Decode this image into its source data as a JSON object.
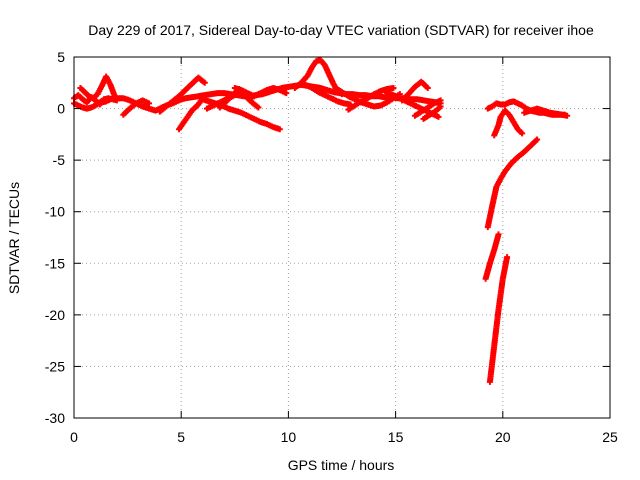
{
  "chart_data": {
    "type": "scatter",
    "title": "Day 229 of 2017, Sidereal Day-to-day VTEC variation (SDTVAR) for receiver ihoe",
    "xlabel": "GPS time / hours",
    "ylabel": "SDTVAR / TECUs",
    "xlim": [
      0,
      25
    ],
    "ylim": [
      -30,
      5
    ],
    "xticks": [
      0,
      5,
      10,
      15,
      20,
      25
    ],
    "yticks": [
      5,
      0,
      -5,
      -10,
      -15,
      -20,
      -25,
      -30
    ],
    "grid": true,
    "marker": "+",
    "color": "#ff0000",
    "series": [
      {
        "x": [
          0.0,
          0.2,
          0.4,
          0.6,
          0.8,
          1.0,
          1.2,
          1.3,
          1.5,
          1.7,
          2.0,
          2.3,
          2.6,
          2.9,
          3.2,
          3.5,
          3.8,
          4.0,
          4.3,
          4.6,
          4.9,
          5.2,
          5.5,
          5.8,
          6.1,
          6.4,
          6.7,
          7.0,
          7.3,
          7.6,
          7.9,
          8.2,
          8.5,
          8.8,
          9.1,
          9.4,
          9.7,
          10.0,
          10.3,
          10.6,
          10.9,
          11.2,
          11.5,
          11.8,
          12.1,
          12.4,
          12.7,
          13.0,
          13.3,
          13.6,
          13.9,
          14.2,
          14.5,
          14.8,
          15.1,
          15.4,
          15.7,
          16.0,
          16.3,
          16.6,
          16.9,
          17.1
        ],
        "y": [
          1.0,
          1.3,
          0.9,
          0.6,
          1.1,
          0.8,
          0.4,
          0.6,
          0.7,
          0.9,
          1.0,
          1.0,
          0.8,
          0.5,
          0.2,
          0.0,
          -0.2,
          0.0,
          0.3,
          0.5,
          0.8,
          1.0,
          1.1,
          1.2,
          1.3,
          1.4,
          1.5,
          1.5,
          1.4,
          1.3,
          1.2,
          1.2,
          1.3,
          1.4,
          1.6,
          1.8,
          2.0,
          2.1,
          2.2,
          2.3,
          2.2,
          2.1,
          2.0,
          1.8,
          1.6,
          1.5,
          1.4,
          1.4,
          1.3,
          1.3,
          1.2,
          1.2,
          1.1,
          1.1,
          1.0,
          1.0,
          0.9,
          0.9,
          0.8,
          0.7,
          0.6,
          0.5
        ]
      },
      {
        "x": [
          0.0,
          0.2,
          0.4,
          0.6,
          0.8,
          1.0,
          1.2,
          1.4,
          1.6,
          1.8,
          2.0
        ],
        "y": [
          0.5,
          0.3,
          0.1,
          0.0,
          0.1,
          0.3,
          0.6,
          0.9,
          1.0,
          0.9,
          0.8
        ]
      },
      {
        "x": [
          0.3,
          0.5,
          0.7,
          0.9,
          1.1,
          1.3,
          1.5,
          1.7,
          1.9
        ],
        "y": [
          2.0,
          1.6,
          1.2,
          1.0,
          1.4,
          2.2,
          3.1,
          2.3,
          1.2
        ]
      },
      {
        "x": [
          2.3,
          2.6,
          2.9,
          3.2,
          3.5
        ],
        "y": [
          -0.6,
          0.0,
          0.5,
          0.8,
          0.5
        ]
      },
      {
        "x": [
          4.0,
          4.3,
          4.6,
          4.9,
          5.2,
          5.5,
          5.8,
          6.1
        ],
        "y": [
          -0.3,
          0.2,
          0.7,
          1.2,
          1.8,
          2.4,
          3.0,
          2.5
        ]
      },
      {
        "x": [
          4.9,
          5.1,
          5.3,
          5.5,
          5.8,
          6.0
        ],
        "y": [
          -2.0,
          -1.4,
          -0.8,
          -0.2,
          0.4,
          1.0
        ]
      },
      {
        "x": [
          6.0,
          6.3,
          6.6,
          6.9,
          7.2,
          7.5,
          7.8,
          8.1,
          8.4,
          8.7,
          9.0,
          9.3,
          9.6
        ],
        "y": [
          0.9,
          0.7,
          0.5,
          0.3,
          0.0,
          -0.2,
          -0.4,
          -0.7,
          -1.0,
          -1.3,
          -1.5,
          -1.8,
          -2.0
        ]
      },
      {
        "x": [
          6.2,
          6.5,
          6.8,
          7.1,
          7.4,
          7.7,
          8.0,
          8.3,
          8.6
        ],
        "y": [
          0.0,
          0.3,
          0.6,
          0.9,
          1.2,
          1.5,
          1.2,
          0.6,
          0.1
        ]
      },
      {
        "x": [
          6.8,
          7.1,
          7.4,
          7.7,
          8.0,
          8.3
        ],
        "y": [
          0.1,
          0.7,
          1.3,
          1.9,
          1.5,
          1.0
        ]
      },
      {
        "x": [
          7.5,
          7.8,
          8.1,
          8.4,
          8.7,
          9.0,
          9.3,
          9.6,
          9.9
        ],
        "y": [
          2.0,
          1.8,
          1.5,
          1.2,
          1.5,
          1.8,
          2.0,
          1.8,
          1.5
        ]
      },
      {
        "x": [
          10.3,
          10.6,
          10.9,
          11.1,
          11.3,
          11.5,
          11.7,
          11.9,
          12.1,
          12.3,
          12.5
        ],
        "y": [
          2.0,
          2.5,
          3.2,
          4.0,
          4.6,
          4.7,
          4.2,
          3.3,
          2.4,
          1.7,
          1.4
        ]
      },
      {
        "x": [
          10.8,
          11.1,
          11.4,
          11.7,
          12.0,
          12.3,
          12.6,
          12.9
        ],
        "y": [
          2.3,
          2.0,
          1.6,
          1.3,
          1.0,
          0.7,
          0.5,
          0.4
        ]
      },
      {
        "x": [
          12.2,
          12.5,
          12.8,
          13.1,
          13.4,
          13.7,
          14.0,
          14.3,
          14.6,
          14.9,
          15.2
        ],
        "y": [
          2.0,
          1.6,
          1.2,
          0.9,
          0.6,
          0.4,
          0.2,
          0.3,
          0.6,
          1.0,
          1.4
        ]
      },
      {
        "x": [
          12.8,
          13.1,
          13.4,
          13.7,
          14.0,
          14.3,
          14.6,
          14.9
        ],
        "y": [
          -0.1,
          0.3,
          0.7,
          1.0,
          1.4,
          1.7,
          1.9,
          2.0
        ]
      },
      {
        "x": [
          14.6,
          14.9,
          15.2,
          15.5,
          15.8,
          16.1,
          16.4,
          16.7,
          17.0
        ],
        "y": [
          1.5,
          1.3,
          1.0,
          0.7,
          0.4,
          0.1,
          -0.2,
          -0.5,
          -0.8
        ]
      },
      {
        "x": [
          15.3,
          15.6,
          15.9,
          16.2,
          16.5
        ],
        "y": [
          0.8,
          1.4,
          2.1,
          2.6,
          2.0
        ]
      },
      {
        "x": [
          15.9,
          16.2,
          16.5,
          16.8,
          17.1
        ],
        "y": [
          -0.7,
          -0.3,
          0.1,
          0.5,
          0.8
        ]
      },
      {
        "x": [
          16.3,
          16.6,
          16.9,
          17.1
        ],
        "y": [
          -1.0,
          -0.6,
          -0.2,
          0.2
        ]
      },
      {
        "x": [
          19.3,
          19.5,
          19.7,
          19.9,
          20.1,
          20.3,
          20.5,
          20.7,
          20.9,
          21.1,
          21.3,
          21.5,
          21.7,
          21.9,
          22.1,
          22.3,
          22.5,
          22.7,
          22.9
        ],
        "y": [
          0.0,
          0.2,
          0.5,
          0.4,
          0.4,
          0.6,
          0.7,
          0.5,
          0.3,
          0.0,
          -0.2,
          -0.3,
          -0.4,
          -0.4,
          -0.5,
          -0.6,
          -0.6,
          -0.6,
          -0.6
        ]
      },
      {
        "x": [
          19.6,
          19.8,
          19.9,
          20.1,
          20.3,
          20.5,
          20.7,
          20.9
        ],
        "y": [
          -2.6,
          -1.6,
          -0.8,
          -0.2,
          -0.6,
          -1.3,
          -2.0,
          -2.4
        ]
      },
      {
        "x": [
          21.0,
          21.3,
          21.6,
          21.9,
          22.2,
          22.5,
          22.8,
          23.0
        ],
        "y": [
          -0.4,
          -0.2,
          0.0,
          -0.2,
          -0.4,
          -0.5,
          -0.6,
          -0.7
        ]
      },
      {
        "x": [
          19.3,
          19.5,
          19.7,
          19.9,
          20.1,
          20.4,
          20.7,
          21.0,
          21.3,
          21.6
        ],
        "y": [
          -11.5,
          -9.5,
          -7.6,
          -6.8,
          -6.1,
          -5.3,
          -4.7,
          -4.2,
          -3.6,
          -3.0
        ]
      },
      {
        "x": [
          19.2,
          19.4,
          19.6,
          19.8
        ],
        "y": [
          -16.5,
          -15.0,
          -13.7,
          -12.2
        ]
      },
      {
        "x": [
          19.4,
          19.6,
          19.8,
          20.0,
          20.2
        ],
        "y": [
          -26.5,
          -23.0,
          -19.5,
          -16.5,
          -14.4
        ]
      }
    ]
  }
}
